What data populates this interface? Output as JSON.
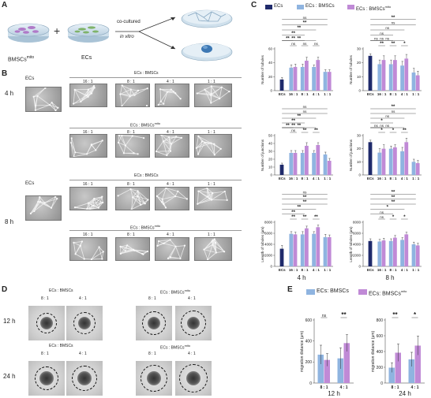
{
  "panels": {
    "A": "A",
    "B": "B",
    "C": "C",
    "D": "D",
    "E": "E"
  },
  "schematic": {
    "left_label": "BMSCs",
    "left_sup": "mito",
    "plus": "+",
    "right_label": "ECs",
    "arrow_line1": "co-cultured",
    "arrow_line2": "in vitro"
  },
  "panelB": {
    "ecs_label": "ECs",
    "time1": "4 h",
    "time2": "8 h",
    "group_bm": "ECs : BMSCs",
    "group_mito_prefix": "ECs : BMSCs",
    "group_mito_sup": "mito",
    "ratios": [
      "16 : 1",
      "8 : 1",
      "4 : 1",
      "1 : 1"
    ]
  },
  "panelC": {
    "legend": [
      {
        "name": "ECs",
        "sup": "",
        "color": "#1f2a6b"
      },
      {
        "name": "ECs : BMSCs",
        "sup": "",
        "color": "#8fb4e0"
      },
      {
        "name": "ECs : BMSCs",
        "sup": "mito",
        "color": "#c08ad6"
      }
    ],
    "col_titles": [
      "4 h",
      "8 h"
    ]
  },
  "chart_data": [
    {
      "type": "bar",
      "title": "",
      "ylabel": "Number of tubules",
      "time": "4 h",
      "ylim": [
        0,
        60
      ],
      "yticks": [
        0,
        20,
        40,
        60
      ],
      "categories": [
        "ECs",
        "16 : 1",
        "8 : 1",
        "4 : 1",
        "1 : 1"
      ],
      "series": [
        {
          "name": "ECs",
          "values": [
            16,
            null,
            null,
            null,
            null
          ],
          "errors": [
            3,
            null,
            null,
            null,
            null
          ]
        },
        {
          "name": "ECs : BMSCs",
          "values": [
            null,
            33,
            34,
            34,
            27
          ],
          "errors": [
            null,
            4,
            4,
            3,
            3
          ]
        },
        {
          "name": "ECs : BMSCs mito",
          "values": [
            null,
            34,
            43,
            44,
            27
          ],
          "errors": [
            null,
            4,
            5,
            4,
            3
          ]
        }
      ],
      "significance": [
        {
          "level": 0,
          "label": "ns"
        },
        {
          "level": 0,
          "label": "ns"
        },
        {
          "level": 0,
          "label": "ns"
        },
        {
          "level": 1,
          "label": "**"
        },
        {
          "level": 1,
          "label": "**"
        },
        {
          "level": 1,
          "label": "**"
        },
        {
          "level": 2,
          "label": "**"
        },
        {
          "level": 3,
          "label": "**"
        },
        {
          "level": 4,
          "label": "**"
        },
        {
          "level": 5,
          "label": "ns"
        }
      ]
    },
    {
      "type": "bar",
      "title": "",
      "ylabel": "Number of tubules",
      "time": "8 h",
      "ylim": [
        0,
        30
      ],
      "yticks": [
        0,
        10,
        20,
        30
      ],
      "categories": [
        "ECs",
        "16 : 1",
        "8 : 1",
        "4 : 1",
        "1 : 1"
      ],
      "series": [
        {
          "name": "ECs",
          "values": [
            25,
            null,
            null,
            null,
            null
          ],
          "errors": [
            1.5,
            null,
            null,
            null,
            null
          ]
        },
        {
          "name": "ECs : BMSCs",
          "values": [
            null,
            19,
            19,
            18,
            13
          ],
          "errors": [
            null,
            3,
            3,
            3,
            3
          ]
        },
        {
          "name": "ECs : BMSCs mito",
          "values": [
            null,
            22,
            22,
            23,
            11
          ],
          "errors": [
            null,
            3,
            3,
            3,
            3
          ]
        }
      ],
      "significance": [
        {
          "level": 0,
          "label": "**"
        },
        {
          "level": 0,
          "label": "**"
        },
        {
          "level": 0,
          "label": "*"
        },
        {
          "level": 1,
          "label": "ns"
        },
        {
          "level": 1,
          "label": "ns"
        },
        {
          "level": 1,
          "label": "ns"
        },
        {
          "level": 2,
          "label": "ns"
        },
        {
          "level": 3,
          "label": "ns"
        },
        {
          "level": 4,
          "label": "ns"
        },
        {
          "level": 5,
          "label": "**"
        }
      ]
    },
    {
      "type": "bar",
      "title": "",
      "ylabel": "Number of junctions",
      "time": "4 h",
      "ylim": [
        0,
        50
      ],
      "yticks": [
        0,
        10,
        20,
        30,
        40,
        50
      ],
      "categories": [
        "ECs",
        "16 : 1",
        "8 : 1",
        "4 : 1",
        "1 : 1"
      ],
      "series": [
        {
          "name": "ECs",
          "values": [
            13,
            null,
            null,
            null,
            null
          ],
          "errors": [
            2,
            null,
            null,
            null,
            null
          ]
        },
        {
          "name": "ECs : BMSCs",
          "values": [
            null,
            28,
            28,
            28,
            26
          ],
          "errors": [
            null,
            3,
            3,
            3,
            3
          ]
        },
        {
          "name": "ECs : BMSCs mito",
          "values": [
            null,
            28,
            37,
            38,
            18
          ],
          "errors": [
            null,
            3,
            4,
            3,
            3
          ]
        }
      ],
      "significance": [
        {
          "level": 0,
          "label": "ns"
        },
        {
          "level": 0,
          "label": "**"
        },
        {
          "level": 0,
          "label": "**"
        },
        {
          "level": 1,
          "label": "**"
        },
        {
          "level": 1,
          "label": "**"
        },
        {
          "level": 1,
          "label": "**"
        },
        {
          "level": 2,
          "label": "**"
        },
        {
          "level": 3,
          "label": "**"
        },
        {
          "level": 4,
          "label": "ns"
        },
        {
          "level": 5,
          "label": "ns"
        }
      ]
    },
    {
      "type": "bar",
      "title": "",
      "ylabel": "Number of junctions",
      "time": "8 h",
      "ylim": [
        0,
        30
      ],
      "yticks": [
        0,
        10,
        20,
        30
      ],
      "categories": [
        "ECs",
        "16 : 1",
        "8 : 1",
        "4 : 1",
        "1 : 1"
      ],
      "series": [
        {
          "name": "ECs",
          "values": [
            25,
            null,
            null,
            null,
            null
          ],
          "errors": [
            1.5,
            null,
            null,
            null,
            null
          ]
        },
        {
          "name": "ECs : BMSCs",
          "values": [
            null,
            17,
            20,
            18,
            10
          ],
          "errors": [
            null,
            3,
            2,
            3,
            2
          ]
        },
        {
          "name": "ECs : BMSCs mito",
          "values": [
            null,
            20,
            21,
            25,
            9
          ],
          "errors": [
            null,
            3,
            2,
            3,
            2
          ]
        }
      ],
      "significance": [
        {
          "level": 0,
          "label": "*"
        },
        {
          "level": 0,
          "label": "*"
        },
        {
          "level": 0,
          "label": "**"
        },
        {
          "level": 1,
          "label": "ns"
        },
        {
          "level": 1,
          "label": "ns"
        },
        {
          "level": 1,
          "label": "ns"
        },
        {
          "level": 2,
          "label": "*"
        },
        {
          "level": 3,
          "label": "ns"
        },
        {
          "level": 4,
          "label": "ns"
        },
        {
          "level": 5,
          "label": "**"
        }
      ]
    },
    {
      "type": "bar",
      "title": "",
      "ylabel": "Length of tubules (μm)",
      "time": "4 h",
      "ylim": [
        0,
        8000
      ],
      "yticks": [
        0,
        2000,
        4000,
        6000,
        8000
      ],
      "categories": [
        "ECs",
        "16 : 1",
        "8 : 1",
        "4 : 1",
        "1 : 1"
      ],
      "series": [
        {
          "name": "ECs",
          "values": [
            3200,
            null,
            null,
            null,
            null
          ],
          "errors": [
            600,
            null,
            null,
            null,
            null
          ]
        },
        {
          "name": "ECs : BMSCs",
          "values": [
            null,
            5900,
            5800,
            5900,
            5300
          ],
          "errors": [
            null,
            400,
            500,
            400,
            500
          ]
        },
        {
          "name": "ECs : BMSCs mito",
          "values": [
            null,
            5800,
            6900,
            7100,
            5300
          ],
          "errors": [
            null,
            400,
            400,
            400,
            400
          ]
        }
      ],
      "significance": [
        {
          "level": 0,
          "label": "**"
        },
        {
          "level": 0,
          "label": "**"
        },
        {
          "level": 0,
          "label": "**"
        },
        {
          "level": 1,
          "label": "**"
        },
        {
          "level": 2,
          "label": "**"
        },
        {
          "level": 3,
          "label": "**"
        },
        {
          "level": 4,
          "label": "**"
        },
        {
          "level": 5,
          "label": "ns"
        }
      ]
    },
    {
      "type": "bar",
      "title": "",
      "ylabel": "Length of tubules (μm)",
      "time": "8 h",
      "ylim": [
        0,
        8000
      ],
      "yticks": [
        0,
        2000,
        4000,
        6000,
        8000
      ],
      "categories": [
        "ECs",
        "16 : 1",
        "8 : 1",
        "4 : 1",
        "1 : 1"
      ],
      "series": [
        {
          "name": "ECs",
          "values": [
            4600,
            null,
            null,
            null,
            null
          ],
          "errors": [
            400,
            null,
            null,
            null,
            null
          ]
        },
        {
          "name": "ECs : BMSCs",
          "values": [
            null,
            4500,
            4600,
            4800,
            4000
          ],
          "errors": [
            null,
            400,
            400,
            400,
            400
          ]
        },
        {
          "name": "ECs : BMSCs mito",
          "values": [
            null,
            4700,
            5200,
            5800,
            3800
          ],
          "errors": [
            null,
            400,
            400,
            400,
            400
          ]
        }
      ],
      "significance": [
        {
          "level": 0,
          "label": "ns"
        },
        {
          "level": 0,
          "label": "*"
        },
        {
          "level": 0,
          "label": "*"
        },
        {
          "level": 1,
          "label": "ns"
        },
        {
          "level": 2,
          "label": "*"
        },
        {
          "level": 3,
          "label": "**"
        },
        {
          "level": 4,
          "label": "**"
        },
        {
          "level": 5,
          "label": "**"
        }
      ]
    },
    {
      "type": "bar",
      "title": "",
      "ylabel": "migration distance (μm)",
      "time": "12 h",
      "ylim": [
        0,
        600
      ],
      "yticks": [
        0,
        200,
        400,
        600
      ],
      "categories": [
        "8 : 1",
        "4 : 1"
      ],
      "series": [
        {
          "name": "ECs: BMSCs",
          "values": [
            270,
            235
          ],
          "errors": [
            90,
            100
          ]
        },
        {
          "name": "ECs: BMSCs mito",
          "values": [
            220,
            380
          ],
          "errors": [
            60,
            80
          ]
        }
      ],
      "significance": [
        {
          "label": "ns"
        },
        {
          "label": "**"
        }
      ]
    },
    {
      "type": "bar",
      "title": "",
      "ylabel": "migration distance (μm)",
      "time": "24 h",
      "ylim": [
        0,
        800
      ],
      "yticks": [
        0,
        200,
        400,
        600,
        800
      ],
      "categories": [
        "8 : 1",
        "4 : 1"
      ],
      "series": [
        {
          "name": "ECs: BMSCs",
          "values": [
            195,
            300
          ],
          "errors": [
            60,
            90
          ]
        },
        {
          "name": "ECs: BMSCs mito",
          "values": [
            385,
            475
          ],
          "errors": [
            110,
            120
          ]
        }
      ],
      "significance": [
        {
          "label": "**"
        },
        {
          "label": "*"
        }
      ]
    }
  ],
  "panelD": {
    "group_bm": "ECs : BMSCs",
    "group_mito_prefix": "ECs : BMSCs",
    "group_mito_sup": "mito",
    "ratios": [
      "8 : 1",
      "4 : 1"
    ],
    "time1": "12 h",
    "time2": "24 h"
  },
  "panelE": {
    "legend": [
      {
        "name": "ECs: BMSCs",
        "sup": "",
        "color": "#8fb4e0"
      },
      {
        "name": "ECs: BMSCs",
        "sup": "mito",
        "color": "#c08ad6"
      }
    ]
  },
  "colors": {
    "ecs": "#1f2a6b",
    "bm": "#8fb4e0",
    "mito": "#c08ad6"
  }
}
